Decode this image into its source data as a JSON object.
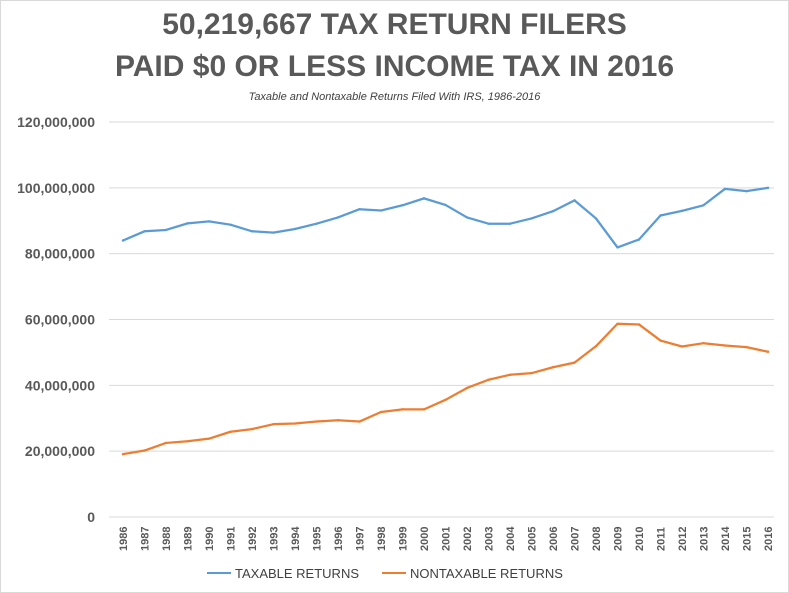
{
  "title_line1": "50,219,667 TAX RETURN FILERS",
  "title_line2": "PAID $0 OR LESS INCOME TAX IN 2016",
  "subtitle": "Taxable and Nontaxable Returns Filed With IRS, 1986-2016",
  "colors": {
    "taxable": "#5b9bd5",
    "nontaxable": "#ed7d31",
    "gridline": "#d9d9d9",
    "axis_text": "#595959",
    "title_text": "#595959"
  },
  "chart_data": {
    "type": "line",
    "title": "50,219,667 TAX RETURN FILERS PAID $0 OR LESS INCOME TAX IN 2016",
    "subtitle": "Taxable and Nontaxable Returns Filed With IRS, 1986-2016",
    "xlabel": "",
    "ylabel": "",
    "x": [
      "1986",
      "1987",
      "1988",
      "1989",
      "1990",
      "1991",
      "1992",
      "1993",
      "1994",
      "1995",
      "1996",
      "1997",
      "1998",
      "1999",
      "2000",
      "2001",
      "2002",
      "2003",
      "2004",
      "2005",
      "2006",
      "2007",
      "2008",
      "2009",
      "2010",
      "2011",
      "2012",
      "2013",
      "2014",
      "2015",
      "2016"
    ],
    "ylim": [
      0,
      120000000
    ],
    "yticks": [
      0,
      20000000,
      40000000,
      60000000,
      80000000,
      100000000,
      120000000
    ],
    "ytick_labels": [
      "0",
      "20,000,000",
      "40,000,000",
      "60,000,000",
      "80,000,000",
      "100,000,000",
      "120,000,000"
    ],
    "grid": "horizontal",
    "legend_position": "bottom",
    "series": [
      {
        "name": "TAXABLE RETURNS",
        "color": "#5b9bd5",
        "values": [
          84000000,
          86800000,
          87200000,
          89200000,
          89800000,
          88800000,
          86800000,
          86400000,
          87500000,
          89100000,
          91000000,
          93500000,
          93100000,
          94700000,
          96800000,
          94800000,
          91000000,
          89100000,
          89100000,
          90700000,
          92900000,
          96200000,
          90700000,
          81900000,
          84300000,
          91600000,
          93000000,
          94700000,
          99700000,
          99000000,
          100000000
        ]
      },
      {
        "name": "NONTAXABLE RETURNS",
        "color": "#ed7d31",
        "values": [
          19100000,
          20200000,
          22500000,
          23000000,
          23800000,
          25900000,
          26700000,
          28200000,
          28400000,
          29000000,
          29400000,
          29000000,
          31900000,
          32700000,
          32700000,
          35600000,
          39200000,
          41700000,
          43200000,
          43700000,
          45500000,
          46900000,
          51900000,
          58700000,
          58500000,
          53600000,
          51800000,
          52800000,
          52100000,
          51600000,
          50200000
        ]
      }
    ]
  }
}
